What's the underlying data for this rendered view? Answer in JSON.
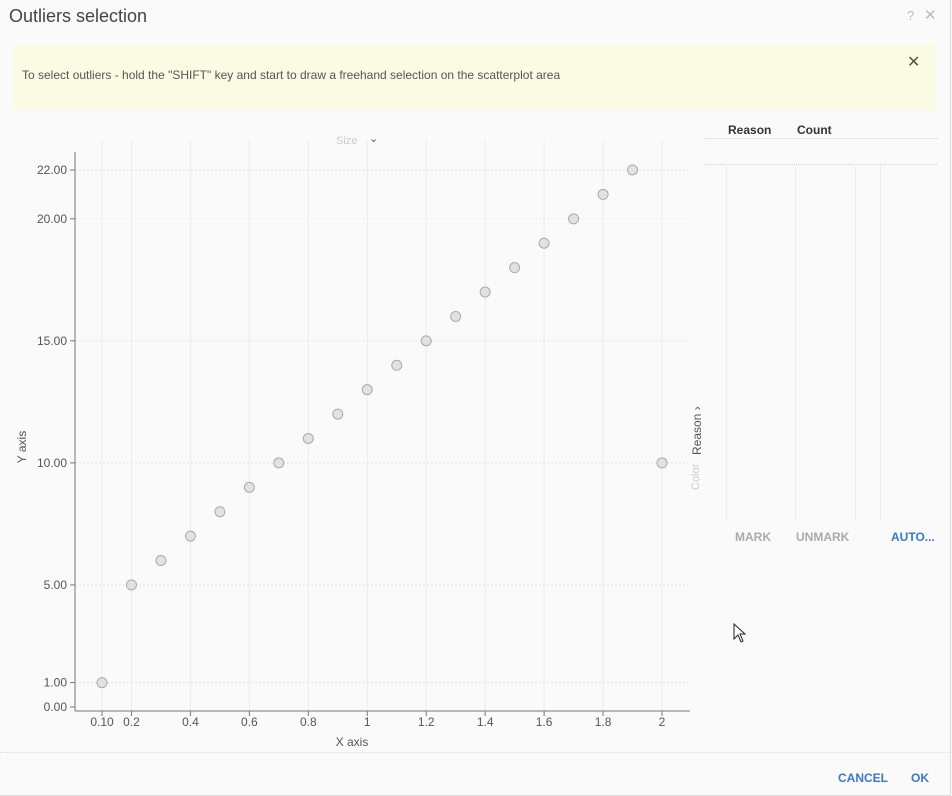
{
  "dialog": {
    "title": "Outliers selection",
    "help_icon": "question-mark-icon",
    "close_icon": "close-icon",
    "help_glyph": "?",
    "close_glyph": "✕"
  },
  "banner": {
    "text": "To select outliers - hold the \"SHIFT\" key and start to draw a freehand selection on the scatterplot area",
    "close_glyph": "✕"
  },
  "size_selector": {
    "label": "Size",
    "chevron": "⌄"
  },
  "chart_data": {
    "type": "scatter",
    "title": "",
    "xlabel": "X axis",
    "ylabel": "Y axis",
    "xlim": [
      0.05,
      2.1
    ],
    "ylim": [
      0,
      23
    ],
    "x_ticks": [
      "0.10",
      "0.2",
      "0.4",
      "0.6",
      "0.8",
      "1",
      "1.2",
      "1.4",
      "1.6",
      "1.8",
      "2"
    ],
    "x_tick_values": [
      0.1,
      0.2,
      0.4,
      0.6,
      0.8,
      1.0,
      1.2,
      1.4,
      1.6,
      1.8,
      2.0
    ],
    "y_ticks": [
      "0.00",
      "1.00",
      "5.00",
      "10.00",
      "15.00",
      "20.00",
      "22.00"
    ],
    "y_tick_values": [
      0,
      1,
      5,
      10,
      15,
      20,
      22
    ],
    "points": [
      {
        "x": 0.1,
        "y": 1
      },
      {
        "x": 0.2,
        "y": 5
      },
      {
        "x": 0.3,
        "y": 6
      },
      {
        "x": 0.4,
        "y": 7
      },
      {
        "x": 0.5,
        "y": 8
      },
      {
        "x": 0.6,
        "y": 9
      },
      {
        "x": 0.7,
        "y": 10
      },
      {
        "x": 0.8,
        "y": 11
      },
      {
        "x": 0.9,
        "y": 12
      },
      {
        "x": 1.0,
        "y": 13
      },
      {
        "x": 1.1,
        "y": 14
      },
      {
        "x": 1.2,
        "y": 15
      },
      {
        "x": 1.3,
        "y": 16
      },
      {
        "x": 1.4,
        "y": 17
      },
      {
        "x": 1.5,
        "y": 18
      },
      {
        "x": 1.6,
        "y": 19
      },
      {
        "x": 1.7,
        "y": 20
      },
      {
        "x": 1.8,
        "y": 21
      },
      {
        "x": 1.9,
        "y": 22
      },
      {
        "x": 2.0,
        "y": 10
      }
    ],
    "point_color": "#e2e2e2",
    "point_stroke": "#aaaaaa"
  },
  "color_selector": {
    "label": "Reason",
    "chevron": "›",
    "placeholder": "Color"
  },
  "reasons_table": {
    "columns": [
      "Reason",
      "Count"
    ],
    "rows": []
  },
  "panel_actions": {
    "mark": "MARK",
    "unmark": "UNMARK",
    "auto": "AUTO..."
  },
  "footer": {
    "cancel": "CANCEL",
    "ok": "OK"
  },
  "colors": {
    "accent": "#3a78c8",
    "banner_bg": "#fbfbe4"
  }
}
